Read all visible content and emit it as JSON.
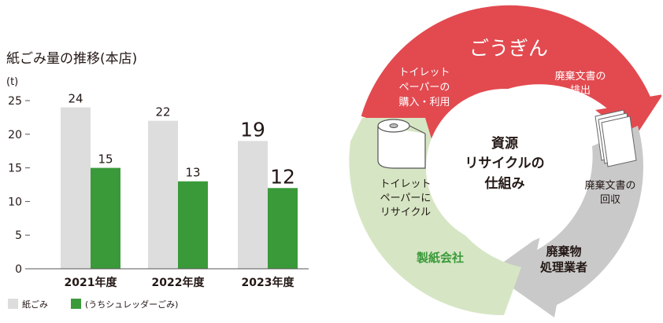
{
  "chart_data": {
    "type": "bar",
    "title": "紙ごみ量の推移(本店)",
    "ylabel": "(t)",
    "ylim": [
      0,
      25
    ],
    "yticks": [
      0,
      5,
      10,
      15,
      20,
      25
    ],
    "categories": [
      "2021年度",
      "2022年度",
      "2023年度"
    ],
    "series": [
      {
        "name": "紙ごみ",
        "values": [
          24,
          22,
          19
        ],
        "color": "#dddddd"
      },
      {
        "name": "(うちシュレッダーごみ)",
        "values": [
          15,
          13,
          12
        ],
        "color": "#3a9a3a"
      }
    ],
    "grid": false,
    "legend": "bottom-left"
  },
  "cycle": {
    "top_label": "ごうぎん",
    "center_lines": [
      "資源",
      "リサイクルの",
      "仕組み"
    ],
    "purchase_lines": [
      "トイレット",
      "ペーパーの",
      "購入・利用"
    ],
    "discharge_lines": [
      "廃棄文書の",
      "排出"
    ],
    "collection_lines": [
      "廃棄文書の",
      "回収"
    ],
    "processor_lines": [
      "廃棄物",
      "処理業者"
    ],
    "paper_mill": "製紙会社",
    "recycle_lines": [
      "トイレット",
      "ペーパーに",
      "リサイクル"
    ],
    "colors": {
      "red": "#e24a50",
      "gray": "#c9c9c9",
      "green": "#d6e6c4",
      "green_text": "#3a9a3a"
    },
    "icons": [
      "toilet-paper-icon",
      "documents-icon"
    ]
  }
}
